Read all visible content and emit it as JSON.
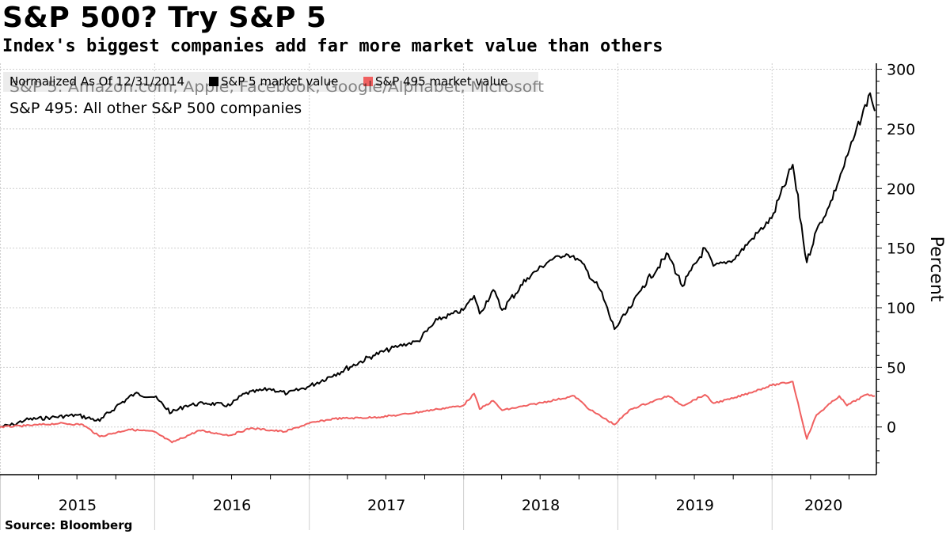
{
  "header": {
    "title": "S&P 500? Try S&P 5",
    "subtitle": "Index's biggest companies add far more market value than others"
  },
  "footer": {
    "source": "Source: Bloomberg"
  },
  "colors": {
    "sp5": "#000000",
    "sp495": "#f06060",
    "grid": "#cfcfcf",
    "legend_bg": "#ececec"
  },
  "chart_data": {
    "type": "line",
    "legend_header": "Normalized As Of 12/31/2014",
    "legend_placement": "top-left",
    "note_lines": [
      "S&P 5: Amazon.com, Apple, Facebook, Google/Alphabet, Microsoft",
      "S&P 495: All other S&P 500 companies"
    ],
    "ylabel": "Percent",
    "ylim": [
      -40,
      305
    ],
    "yticks": [
      0,
      50,
      100,
      150,
      200,
      250,
      300
    ],
    "grid": true,
    "x_categories": [
      "2015",
      "2016",
      "2017",
      "2018",
      "2019",
      "2020"
    ],
    "xlim": [
      "2014-12-31",
      "2020-08-31"
    ],
    "series": [
      {
        "name": "S&P 5 market value",
        "color": "#000000",
        "points": [
          [
            "2014-12-31",
            0
          ],
          [
            "2015-02-01",
            2
          ],
          [
            "2015-03-01",
            6
          ],
          [
            "2015-05-01",
            8
          ],
          [
            "2015-07-01",
            10
          ],
          [
            "2015-08-24",
            5
          ],
          [
            "2015-10-01",
            17
          ],
          [
            "2015-11-15",
            28
          ],
          [
            "2015-12-31",
            25
          ],
          [
            "2016-02-10",
            12
          ],
          [
            "2016-03-15",
            18
          ],
          [
            "2016-05-01",
            20
          ],
          [
            "2016-06-27",
            18
          ],
          [
            "2016-08-01",
            28
          ],
          [
            "2016-09-30",
            32
          ],
          [
            "2016-11-10",
            28
          ],
          [
            "2016-12-31",
            34
          ],
          [
            "2017-03-01",
            44
          ],
          [
            "2017-06-01",
            60
          ],
          [
            "2017-08-01",
            68
          ],
          [
            "2017-09-15",
            72
          ],
          [
            "2017-11-01",
            90
          ],
          [
            "2017-12-31",
            98
          ],
          [
            "2018-01-26",
            110
          ],
          [
            "2018-02-08",
            95
          ],
          [
            "2018-03-12",
            115
          ],
          [
            "2018-04-02",
            98
          ],
          [
            "2018-06-01",
            125
          ],
          [
            "2018-07-25",
            140
          ],
          [
            "2018-09-01",
            145
          ],
          [
            "2018-10-01",
            140
          ],
          [
            "2018-11-20",
            115
          ],
          [
            "2018-12-24",
            82
          ],
          [
            "2019-01-31",
            100
          ],
          [
            "2019-03-01",
            118
          ],
          [
            "2019-04-30",
            145
          ],
          [
            "2019-06-03",
            118
          ],
          [
            "2019-07-26",
            150
          ],
          [
            "2019-08-15",
            135
          ],
          [
            "2019-10-01",
            140
          ],
          [
            "2019-11-15",
            158
          ],
          [
            "2019-12-31",
            175
          ],
          [
            "2020-02-19",
            220
          ],
          [
            "2020-03-23",
            138
          ],
          [
            "2020-04-15",
            165
          ],
          [
            "2020-05-15",
            185
          ],
          [
            "2020-06-15",
            215
          ],
          [
            "2020-07-15",
            245
          ],
          [
            "2020-08-20",
            280
          ],
          [
            "2020-08-31",
            265
          ]
        ]
      },
      {
        "name": "S&P 495 market value",
        "color": "#f06060",
        "points": [
          [
            "2014-12-31",
            0
          ],
          [
            "2015-03-01",
            1
          ],
          [
            "2015-05-20",
            3
          ],
          [
            "2015-07-15",
            2
          ],
          [
            "2015-08-24",
            -8
          ],
          [
            "2015-11-01",
            -2
          ],
          [
            "2015-12-31",
            -4
          ],
          [
            "2016-02-11",
            -13
          ],
          [
            "2016-04-15",
            -3
          ],
          [
            "2016-06-27",
            -7
          ],
          [
            "2016-08-15",
            -1
          ],
          [
            "2016-11-04",
            -4
          ],
          [
            "2016-12-31",
            3
          ],
          [
            "2017-03-01",
            7
          ],
          [
            "2017-06-01",
            8
          ],
          [
            "2017-08-01",
            10
          ],
          [
            "2017-11-01",
            15
          ],
          [
            "2017-12-31",
            18
          ],
          [
            "2018-01-26",
            28
          ],
          [
            "2018-02-08",
            15
          ],
          [
            "2018-03-12",
            22
          ],
          [
            "2018-04-02",
            14
          ],
          [
            "2018-06-01",
            18
          ],
          [
            "2018-09-20",
            26
          ],
          [
            "2018-10-29",
            14
          ],
          [
            "2018-12-24",
            2
          ],
          [
            "2019-02-01",
            15
          ],
          [
            "2019-04-30",
            26
          ],
          [
            "2019-06-03",
            18
          ],
          [
            "2019-07-26",
            27
          ],
          [
            "2019-08-15",
            20
          ],
          [
            "2019-10-01",
            24
          ],
          [
            "2019-12-31",
            35
          ],
          [
            "2020-02-19",
            38
          ],
          [
            "2020-03-23",
            -10
          ],
          [
            "2020-04-15",
            10
          ],
          [
            "2020-06-08",
            26
          ],
          [
            "2020-06-26",
            18
          ],
          [
            "2020-08-10",
            27
          ],
          [
            "2020-08-31",
            26
          ]
        ]
      }
    ]
  }
}
